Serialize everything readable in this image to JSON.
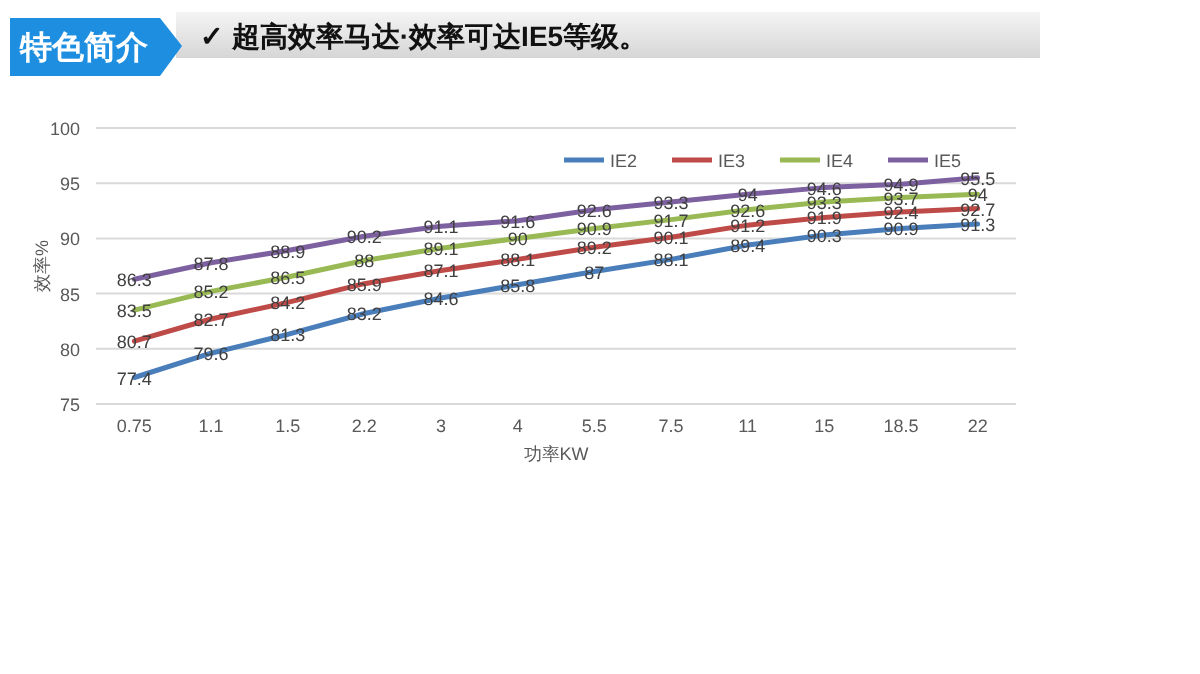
{
  "chart_data": {
    "type": "line",
    "title": "特色简介",
    "subtitle": "✓ 超高效率马达·效率可达IE5等级。",
    "xlabel": "功率KW",
    "ylabel": "效率%",
    "categories": [
      "0.75",
      "1.1",
      "1.5",
      "2.2",
      "3",
      "4",
      "5.5",
      "7.5",
      "11",
      "15",
      "18.5",
      "22"
    ],
    "series": [
      {
        "name": "IE2",
        "color": "#4a7ebb",
        "values": [
          77.4,
          79.6,
          81.3,
          83.2,
          84.6,
          85.8,
          87,
          88.1,
          89.4,
          90.3,
          90.9,
          91.3
        ]
      },
      {
        "name": "IE3",
        "color": "#be4b48",
        "values": [
          80.7,
          82.7,
          84.2,
          85.9,
          87.1,
          88.1,
          89.2,
          90.1,
          91.2,
          91.9,
          92.4,
          92.7
        ]
      },
      {
        "name": "IE4",
        "color": "#98b954",
        "values": [
          83.5,
          85.2,
          86.5,
          88,
          89.1,
          90,
          90.9,
          91.7,
          92.6,
          93.3,
          93.7,
          94
        ]
      },
      {
        "name": "IE5",
        "color": "#7d60a0",
        "values": [
          86.3,
          87.8,
          88.9,
          90.2,
          91.1,
          91.6,
          92.6,
          93.3,
          94,
          94.6,
          94.9,
          95.5
        ]
      }
    ],
    "ylim": [
      75,
      100
    ],
    "yticks": [
      75,
      80,
      85,
      90,
      95,
      100
    ],
    "grid": "y",
    "legend": "top right",
    "data_labels": true,
    "marker": "none",
    "line_style": "solid"
  }
}
